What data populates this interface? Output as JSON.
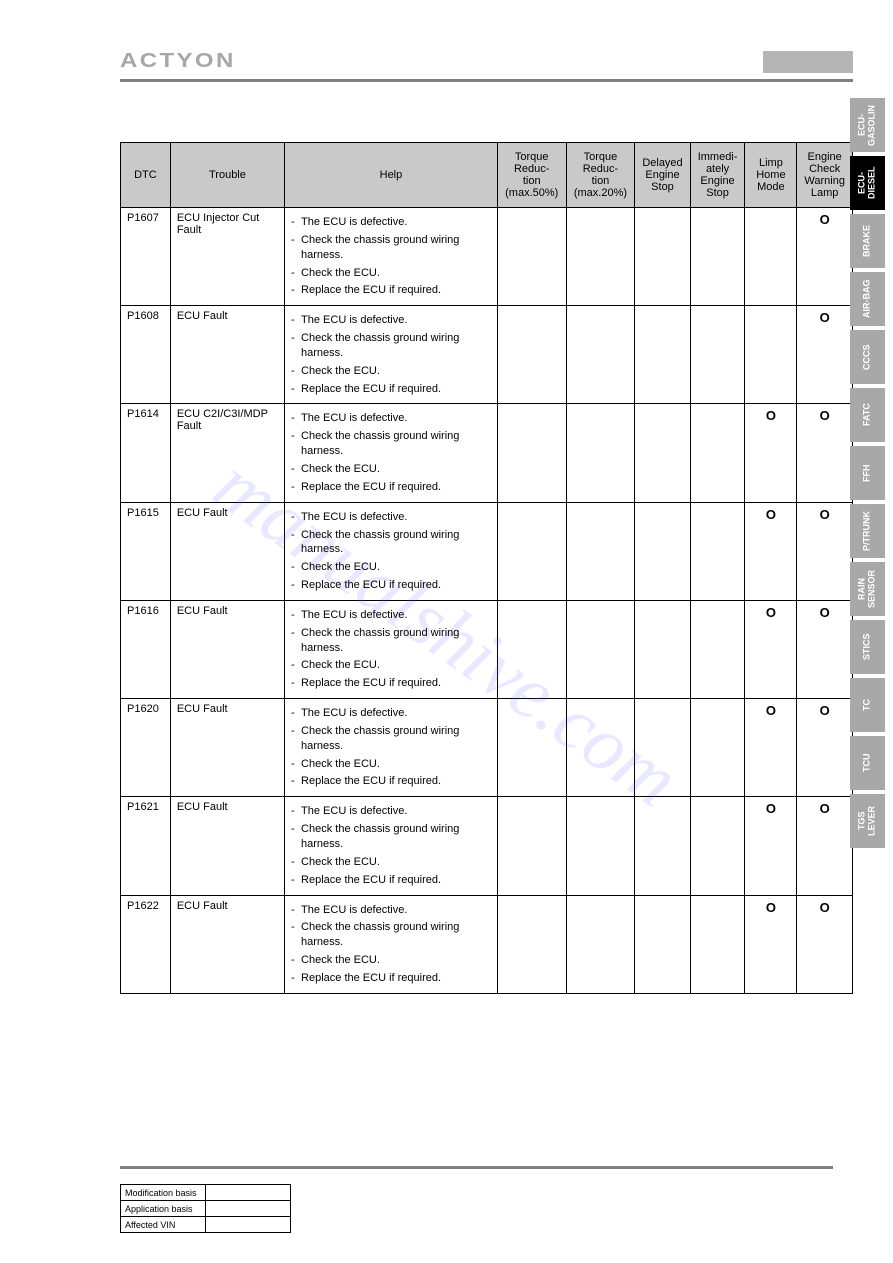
{
  "header": {
    "logo": "ACTYON"
  },
  "watermark": "manualshive.com",
  "table": {
    "columns": [
      "DTC",
      "Trouble",
      "Help",
      "Torque Reduc- tion (max.50%)",
      "Torque Reduc- tion (max.20%)",
      "Delayed Engine Stop",
      "Immedi- ately Engine Stop",
      "Limp Home Mode",
      "Engine Check Warning Lamp"
    ],
    "help_lines": [
      "The ECU is defective.",
      "Check the chassis ground wiring harness.",
      "Check the ECU.",
      "Replace the ECU if required."
    ],
    "rows": [
      {
        "dtc": "P1607",
        "trouble": "ECU Injector Cut Fault",
        "marks": [
          "",
          "",
          "",
          "",
          "",
          "O"
        ]
      },
      {
        "dtc": "P1608",
        "trouble": "ECU Fault",
        "marks": [
          "",
          "",
          "",
          "",
          "",
          "O"
        ]
      },
      {
        "dtc": "P1614",
        "trouble": "ECU C2I/C3I/MDP Fault",
        "marks": [
          "",
          "",
          "",
          "",
          "O",
          "O"
        ]
      },
      {
        "dtc": "P1615",
        "trouble": "ECU Fault",
        "marks": [
          "",
          "",
          "",
          "",
          "O",
          "O"
        ]
      },
      {
        "dtc": "P1616",
        "trouble": "ECU Fault",
        "marks": [
          "",
          "",
          "",
          "",
          "O",
          "O"
        ]
      },
      {
        "dtc": "P1620",
        "trouble": "ECU Fault",
        "marks": [
          "",
          "",
          "",
          "",
          "O",
          "O"
        ]
      },
      {
        "dtc": "P1621",
        "trouble": "ECU Fault",
        "marks": [
          "",
          "",
          "",
          "",
          "O",
          "O"
        ]
      },
      {
        "dtc": "P1622",
        "trouble": "ECU Fault",
        "marks": [
          "",
          "",
          "",
          "",
          "O",
          "O"
        ]
      }
    ]
  },
  "tabs": [
    {
      "label": "ECU-\nGASOLIN",
      "style": "gray"
    },
    {
      "label": "ECU-\nDIESEL",
      "style": "black"
    },
    {
      "label": "BRAKE",
      "style": "gray"
    },
    {
      "label": "AIR-BAG",
      "style": "gray"
    },
    {
      "label": "CCCS",
      "style": "gray"
    },
    {
      "label": "FATC",
      "style": "gray"
    },
    {
      "label": "FFH",
      "style": "gray"
    },
    {
      "label": "P/TRUNK",
      "style": "gray"
    },
    {
      "label": "RAIN\nSENSOR",
      "style": "gray"
    },
    {
      "label": "STICS",
      "style": "gray"
    },
    {
      "label": "TC",
      "style": "gray"
    },
    {
      "label": "TCU",
      "style": "gray"
    },
    {
      "label": "TGS\nLEVER",
      "style": "gray"
    }
  ],
  "footer": {
    "rows": [
      "Modification basis",
      "Application basis",
      "Affected VIN"
    ]
  }
}
